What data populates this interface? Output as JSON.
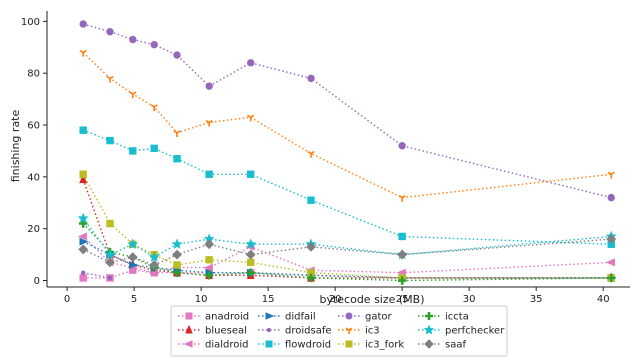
{
  "chart_data": {
    "type": "line",
    "title": "",
    "xlabel": "bytecode size (MB)",
    "ylabel": "finishing rate",
    "xlim": [
      -1.5,
      42
    ],
    "ylim": [
      -2.5,
      104
    ],
    "xticks": [
      0,
      5,
      10,
      15,
      20,
      25,
      30,
      35,
      40
    ],
    "yticks": [
      0,
      20,
      40,
      60,
      80,
      100
    ],
    "grid": false,
    "legend_placement": "bottom-center",
    "x": [
      1.2,
      3.2,
      4.9,
      6.5,
      8.2,
      10.6,
      13.7,
      18.2,
      25.0,
      40.6
    ],
    "series": [
      {
        "name": "anadroid",
        "color": "#e377c2",
        "marker": "square",
        "values": [
          1,
          1,
          4,
          3,
          3,
          3,
          3,
          2,
          1,
          1
        ]
      },
      {
        "name": "blueseal",
        "color": "#d62728",
        "marker": "triangle-up",
        "values": [
          39,
          10,
          6,
          4,
          3,
          2,
          2,
          1,
          1,
          1
        ]
      },
      {
        "name": "dialdroid",
        "color": "#e377c2",
        "marker": "triangle-left",
        "values": [
          17,
          7,
          5,
          3,
          5,
          5,
          13,
          4,
          3,
          7
        ]
      },
      {
        "name": "didfail",
        "color": "#1f77b4",
        "marker": "triangle-right",
        "values": [
          15,
          10,
          6,
          5,
          4,
          3,
          3,
          2,
          1,
          1
        ]
      },
      {
        "name": "droidsafe",
        "color": "#9467bd",
        "marker": "dot",
        "values": [
          3,
          1,
          null,
          null,
          null,
          null,
          null,
          null,
          null,
          null
        ]
      },
      {
        "name": "flowdroid",
        "color": "#17becf",
        "marker": "square",
        "values": [
          58,
          54,
          50,
          51,
          47,
          41,
          41,
          31,
          17,
          14
        ]
      },
      {
        "name": "gator",
        "color": "#9467bd",
        "marker": "circle",
        "values": [
          99,
          96,
          93,
          91,
          87,
          75,
          84,
          78,
          52,
          32
        ]
      },
      {
        "name": "ic3",
        "color": "#ff7f0e",
        "marker": "tri-down",
        "values": [
          88,
          78,
          72,
          67,
          57,
          61,
          63,
          49,
          32,
          41
        ]
      },
      {
        "name": "ic3_fork",
        "color": "#bcbd22",
        "marker": "square",
        "values": [
          41,
          22,
          14,
          10,
          6,
          8,
          7,
          3,
          1,
          1
        ]
      },
      {
        "name": "iccta",
        "color": "#2ca02c",
        "marker": "plus",
        "values": [
          22,
          11,
          9,
          5,
          3,
          2,
          3,
          1,
          0,
          1
        ]
      },
      {
        "name": "perfchecker",
        "color": "#17becf",
        "marker": "star",
        "values": [
          24,
          10,
          14,
          9,
          14,
          16,
          14,
          14,
          10,
          17
        ]
      },
      {
        "name": "saaf",
        "color": "#7f7f7f",
        "marker": "diamond",
        "values": [
          12,
          7,
          9,
          6,
          10,
          14,
          10,
          13,
          10,
          16
        ]
      }
    ]
  },
  "legend": {
    "items": [
      {
        "label": "anadroid"
      },
      {
        "label": "blueseal"
      },
      {
        "label": "dialdroid"
      },
      {
        "label": "didfail"
      },
      {
        "label": "droidsafe"
      },
      {
        "label": "flowdroid"
      },
      {
        "label": "gator"
      },
      {
        "label": "ic3"
      },
      {
        "label": "ic3_fork"
      },
      {
        "label": "iccta"
      },
      {
        "label": "perfchecker"
      },
      {
        "label": "saaf"
      }
    ]
  }
}
